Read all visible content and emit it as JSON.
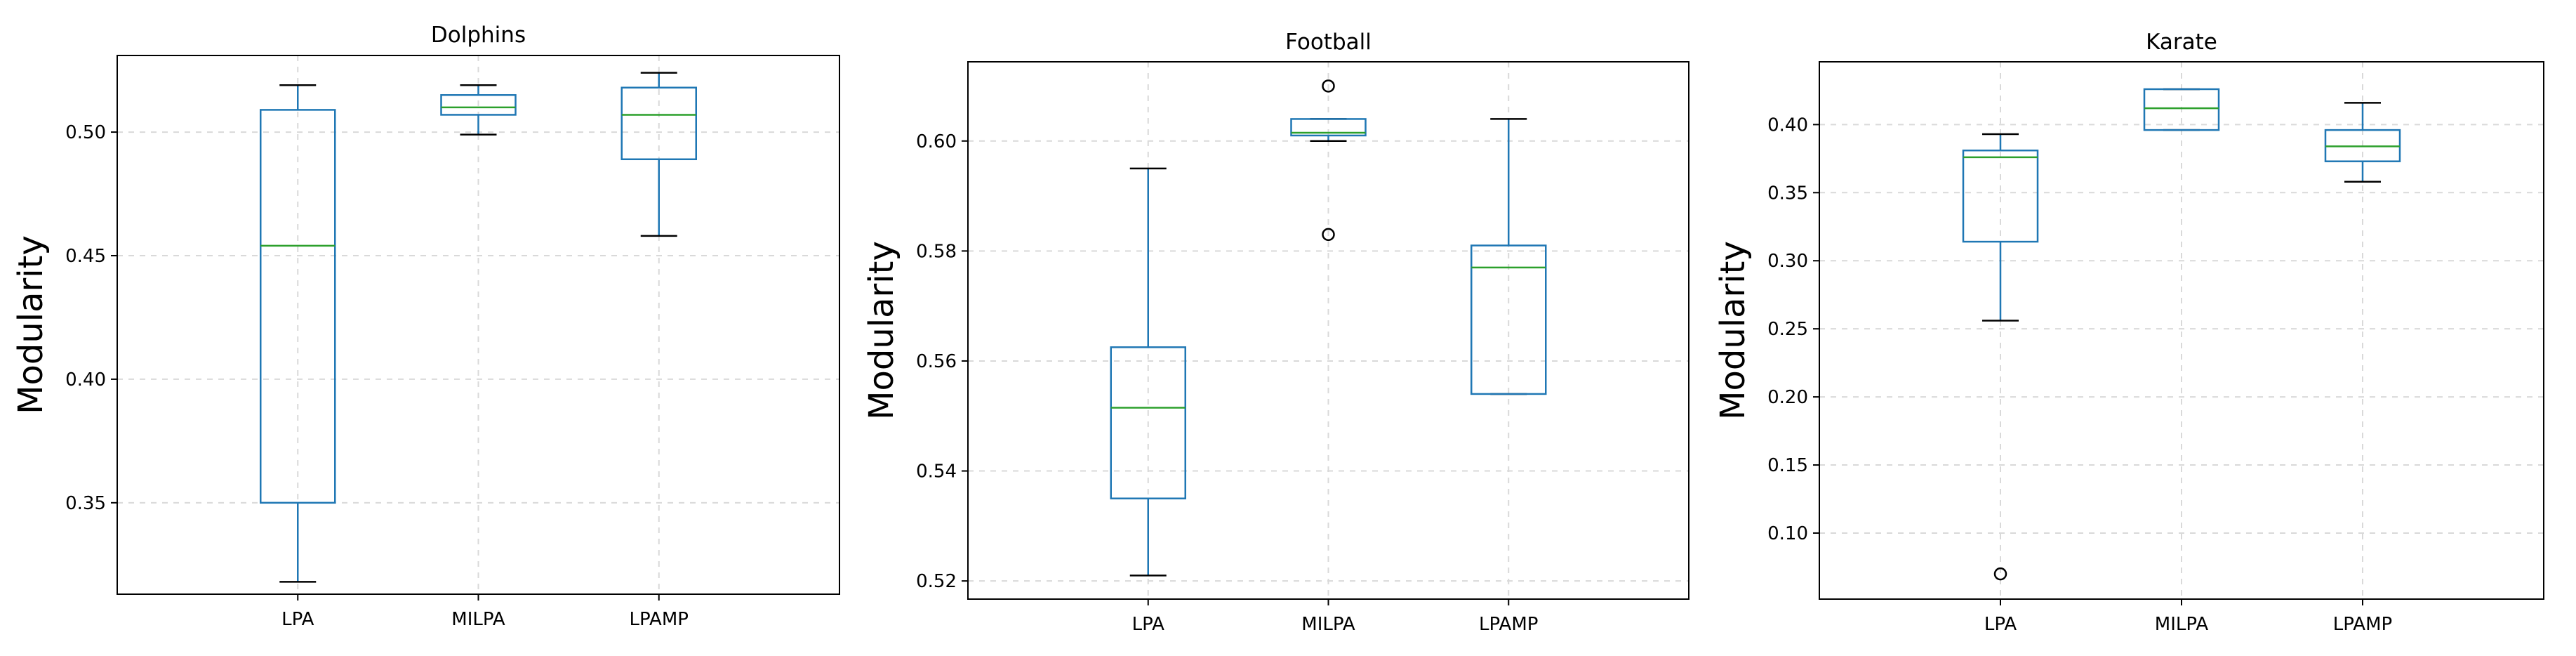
{
  "colors": {
    "box": "#1f77b4",
    "median": "#2ca02c",
    "flier": "#000000"
  },
  "chart_data": [
    {
      "type": "boxplot",
      "title": "Dolphins",
      "ylabel": "Modularity",
      "xlabel": "",
      "grid": true,
      "ylim": [
        0.313,
        0.531
      ],
      "yticks": [
        0.35,
        0.4,
        0.45,
        0.5
      ],
      "ytick_labels": [
        "0.35",
        "0.40",
        "0.45",
        "0.50"
      ],
      "categories": [
        "LPA",
        "MILPA",
        "LPAMP"
      ],
      "boxes": [
        {
          "name": "LPA",
          "whislo": 0.318,
          "q1": 0.35,
          "med": 0.454,
          "q3": 0.509,
          "whishi": 0.519,
          "fliers": []
        },
        {
          "name": "MILPA",
          "whislo": 0.499,
          "q1": 0.507,
          "med": 0.51,
          "q3": 0.515,
          "whishi": 0.519,
          "fliers": []
        },
        {
          "name": "LPAMP",
          "whislo": 0.458,
          "q1": 0.489,
          "med": 0.507,
          "q3": 0.518,
          "whishi": 0.524,
          "fliers": []
        }
      ]
    },
    {
      "type": "boxplot",
      "title": "Football",
      "ylabel": "Modularity",
      "xlabel": "",
      "grid": true,
      "ylim": [
        0.5167,
        0.6144
      ],
      "yticks": [
        0.52,
        0.54,
        0.56,
        0.58,
        0.6
      ],
      "ytick_labels": [
        "0.52",
        "0.54",
        "0.56",
        "0.58",
        "0.60"
      ],
      "categories": [
        "LPA",
        "MILPA",
        "LPAMP"
      ],
      "boxes": [
        {
          "name": "LPA",
          "whislo": 0.521,
          "q1": 0.535,
          "med": 0.5515,
          "q3": 0.5625,
          "whishi": 0.595,
          "fliers": []
        },
        {
          "name": "MILPA",
          "whislo": 0.6,
          "q1": 0.601,
          "med": 0.6015,
          "q3": 0.604,
          "whishi": 0.604,
          "fliers": [
            0.61,
            0.583
          ]
        },
        {
          "name": "LPAMP",
          "whislo": 0.554,
          "q1": 0.554,
          "med": 0.577,
          "q3": 0.581,
          "whishi": 0.604,
          "fliers": []
        }
      ]
    },
    {
      "type": "boxplot",
      "title": "Karate",
      "ylabel": "Modularity",
      "xlabel": "",
      "grid": true,
      "ylim": [
        0.0515,
        0.4461
      ],
      "yticks": [
        0.1,
        0.15,
        0.2,
        0.25,
        0.3,
        0.35,
        0.4
      ],
      "ytick_labels": [
        "0.10",
        "0.15",
        "0.20",
        "0.25",
        "0.30",
        "0.35",
        "0.40"
      ],
      "categories": [
        "LPA",
        "MILPA",
        "LPAMP"
      ],
      "boxes": [
        {
          "name": "LPA",
          "whislo": 0.256,
          "q1": 0.314,
          "med": 0.376,
          "q3": 0.381,
          "whishi": 0.393,
          "fliers": [
            0.07
          ]
        },
        {
          "name": "MILPA",
          "whislo": 0.396,
          "q1": 0.396,
          "med": 0.412,
          "q3": 0.426,
          "whishi": 0.426,
          "fliers": []
        },
        {
          "name": "LPAMP",
          "whislo": 0.358,
          "q1": 0.373,
          "med": 0.384,
          "q3": 0.396,
          "whishi": 0.416,
          "fliers": []
        }
      ]
    }
  ]
}
